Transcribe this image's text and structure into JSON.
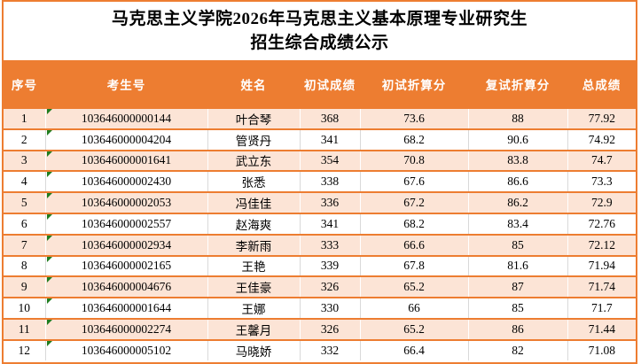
{
  "header": {
    "title_line1": "马克思主义学院2026年马克思主义基本原理专业研究生",
    "title_line2": "招生综合成绩公示"
  },
  "colors": {
    "header_bg": "#ED7D31",
    "alt_row_bg": "#FCE4D6",
    "row_bg": "#FFFFFF",
    "grid_line": "#ED7D31",
    "cell_divider": "#D9D9D9",
    "indicator_green": "#1F7D1F",
    "header_text": "#FFFFFF",
    "body_text": "#000000"
  },
  "table": {
    "columns": [
      "序号",
      "考生号",
      "姓名",
      "初试成绩",
      "初试折算分",
      "复试折算分",
      "总成绩"
    ],
    "rows": [
      [
        "1",
        "103646000000144",
        "叶合琴",
        "368",
        "73.6",
        "88",
        "77.92"
      ],
      [
        "2",
        "103646000004204",
        "管贤丹",
        "341",
        "68.2",
        "90.6",
        "74.92"
      ],
      [
        "3",
        "103646000001641",
        "武立东",
        "354",
        "70.8",
        "83.8",
        "74.7"
      ],
      [
        "4",
        "103646000002430",
        "张悉",
        "338",
        "67.6",
        "86.6",
        "73.3"
      ],
      [
        "5",
        "103646000002053",
        "冯佳佳",
        "336",
        "67.2",
        "86.2",
        "72.9"
      ],
      [
        "6",
        "103646000002557",
        "赵海爽",
        "341",
        "68.2",
        "83.4",
        "72.76"
      ],
      [
        "7",
        "103646000002934",
        "李新雨",
        "333",
        "66.6",
        "85",
        "72.12"
      ],
      [
        "8",
        "103646000002165",
        "王艳",
        "339",
        "67.8",
        "81.6",
        "71.94"
      ],
      [
        "9",
        "103646000004676",
        "王佳豪",
        "326",
        "65.2",
        "87",
        "71.74"
      ],
      [
        "10",
        "103646000001644",
        "王娜",
        "330",
        "66",
        "85",
        "71.7"
      ],
      [
        "11",
        "103646000002274",
        "王馨月",
        "326",
        "65.2",
        "86",
        "71.44"
      ],
      [
        "12",
        "103646000005102",
        "马晓娇",
        "332",
        "66.4",
        "82",
        "71.08"
      ]
    ]
  },
  "icons": {
    "cell_corner_indicator": "green-triangle"
  }
}
